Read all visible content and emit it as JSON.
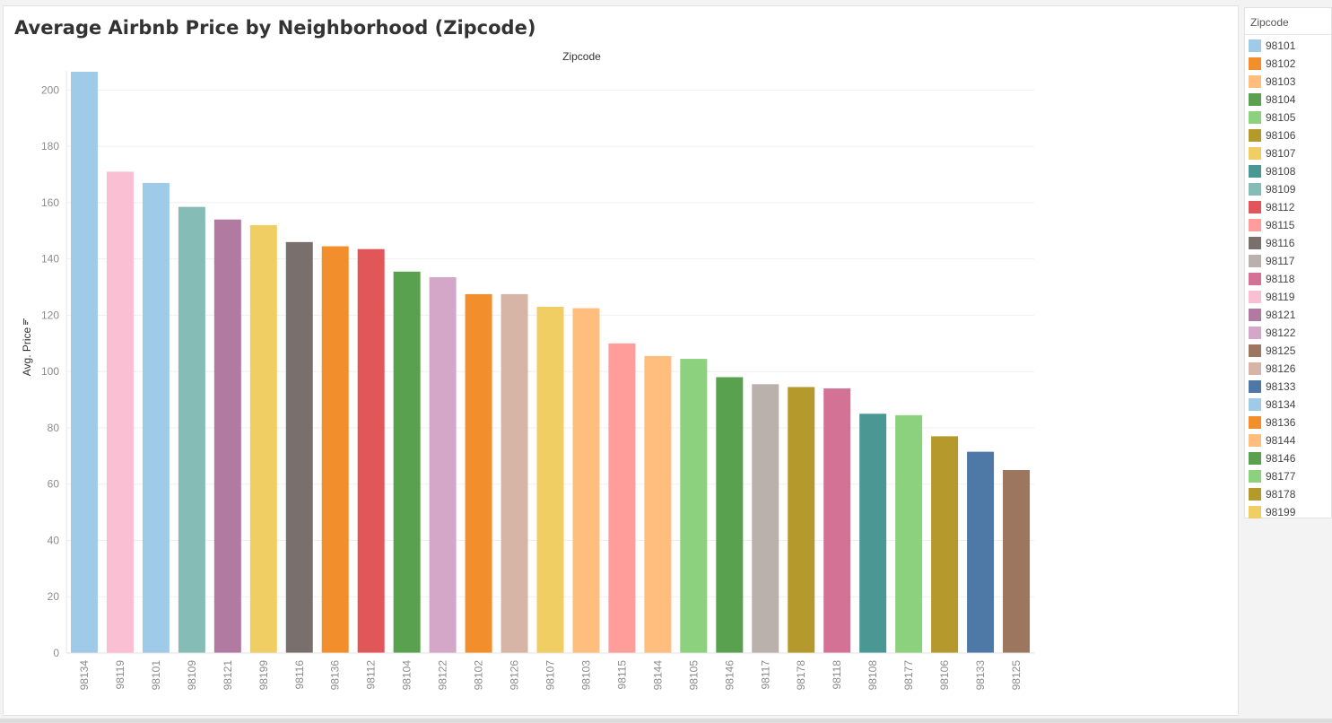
{
  "chart_data": {
    "type": "bar",
    "title": "Average Airbnb Price by Neighborhood (Zipcode)",
    "column_header": "Zipcode",
    "ylabel": "Avg. Price",
    "ylim": [
      0,
      210
    ],
    "yticks": [
      0,
      20,
      40,
      60,
      80,
      100,
      120,
      140,
      160,
      180,
      200
    ],
    "grid": true,
    "legend_position": "right",
    "categories": [
      "98134",
      "98119",
      "98101",
      "98109",
      "98121",
      "98199",
      "98116",
      "98136",
      "98112",
      "98104",
      "98122",
      "98102",
      "98126",
      "98107",
      "98103",
      "98115",
      "98144",
      "98105",
      "98146",
      "98117",
      "98178",
      "98118",
      "98108",
      "98177",
      "98106",
      "98133",
      "98125"
    ],
    "values": [
      206.5,
      171,
      167,
      158.5,
      154,
      152,
      146,
      144.5,
      143.5,
      135.5,
      133.5,
      127.5,
      127.5,
      123,
      122.5,
      110,
      105.5,
      104.5,
      98,
      95.5,
      94.5,
      94,
      85,
      84.5,
      77,
      71.5,
      65
    ]
  },
  "legend": {
    "title": "Zipcode",
    "items": [
      {
        "label": "98101",
        "color": "#a0cbe8"
      },
      {
        "label": "98102",
        "color": "#f28e2b"
      },
      {
        "label": "98103",
        "color": "#ffbe7d"
      },
      {
        "label": "98104",
        "color": "#59a14f"
      },
      {
        "label": "98105",
        "color": "#8cd17d"
      },
      {
        "label": "98106",
        "color": "#b6992d"
      },
      {
        "label": "98107",
        "color": "#f1ce63"
      },
      {
        "label": "98108",
        "color": "#499894"
      },
      {
        "label": "98109",
        "color": "#86bcb6"
      },
      {
        "label": "98112",
        "color": "#e15759"
      },
      {
        "label": "98115",
        "color": "#ff9d9a"
      },
      {
        "label": "98116",
        "color": "#79706e"
      },
      {
        "label": "98117",
        "color": "#bab0ac"
      },
      {
        "label": "98118",
        "color": "#d37295"
      },
      {
        "label": "98119",
        "color": "#fabfd2"
      },
      {
        "label": "98121",
        "color": "#b07aa1"
      },
      {
        "label": "98122",
        "color": "#d4a6c8"
      },
      {
        "label": "98125",
        "color": "#9d7660"
      },
      {
        "label": "98126",
        "color": "#d7b5a6"
      },
      {
        "label": "98133",
        "color": "#4e79a7"
      },
      {
        "label": "98134",
        "color": "#a0cbe8"
      },
      {
        "label": "98136",
        "color": "#f28e2b"
      },
      {
        "label": "98144",
        "color": "#ffbe7d"
      },
      {
        "label": "98146",
        "color": "#59a14f"
      },
      {
        "label": "98177",
        "color": "#8cd17d"
      },
      {
        "label": "98178",
        "color": "#b6992d"
      },
      {
        "label": "98199",
        "color": "#f1ce63"
      }
    ]
  },
  "colors": {
    "axis_text": "#8c8c8c",
    "grid": "#efefef",
    "header_text": "#333333"
  }
}
